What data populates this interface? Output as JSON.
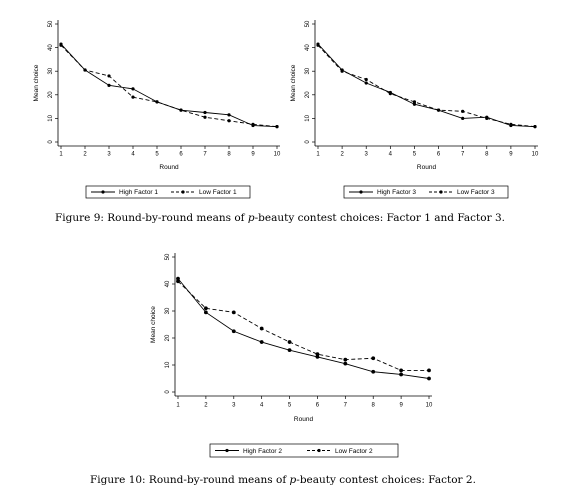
{
  "captions": {
    "fig9_prefix": "Figure 9: Round-by-round means of ",
    "fig9_italic": "p",
    "fig9_suffix": "-beauty contest choices: Factor 1 and Factor 3.",
    "fig10_prefix": "Figure 10: Round-by-round means of ",
    "fig10_italic": "p",
    "fig10_suffix": "-beauty contest choices: Factor 2."
  },
  "chart_data": [
    {
      "type": "line",
      "xlabel": "Round",
      "ylabel": "Mean choice",
      "x": [
        1,
        2,
        3,
        4,
        5,
        6,
        7,
        8,
        9,
        10
      ],
      "xlim": [
        1,
        10
      ],
      "ylim": [
        0,
        50
      ],
      "yticks": [
        0,
        10,
        20,
        30,
        40,
        50
      ],
      "legend_position": "bottom",
      "series": [
        {
          "name": "High Factor 1",
          "style": "solid",
          "values": [
            41.5,
            30.5,
            24,
            22.5,
            17,
            13.5,
            12.5,
            11.5,
            7,
            6.5
          ]
        },
        {
          "name": "Low Factor 1",
          "style": "dashed",
          "values": [
            41,
            30.5,
            28,
            19,
            17,
            13.5,
            10.5,
            9,
            7.5,
            6.5
          ]
        }
      ]
    },
    {
      "type": "line",
      "xlabel": "Round",
      "ylabel": "Mean choice",
      "x": [
        1,
        2,
        3,
        4,
        5,
        6,
        7,
        8,
        9,
        10
      ],
      "xlim": [
        1,
        10
      ],
      "ylim": [
        0,
        50
      ],
      "yticks": [
        0,
        10,
        20,
        30,
        40,
        50
      ],
      "legend_position": "bottom",
      "series": [
        {
          "name": "High Factor 3",
          "style": "solid",
          "values": [
            41.5,
            30.5,
            25,
            21,
            16,
            13.5,
            10,
            10.5,
            7,
            6.5
          ]
        },
        {
          "name": "Low Factor 3",
          "style": "dashed",
          "values": [
            41,
            30,
            26.5,
            20.5,
            17,
            13.5,
            13,
            10,
            7.5,
            6.5
          ]
        }
      ]
    },
    {
      "type": "line",
      "xlabel": "Round",
      "ylabel": "Mean choice",
      "x": [
        1,
        2,
        3,
        4,
        5,
        6,
        7,
        8,
        9,
        10
      ],
      "xlim": [
        1,
        10
      ],
      "ylim": [
        0,
        50
      ],
      "yticks": [
        0,
        10,
        20,
        30,
        40,
        50
      ],
      "legend_position": "bottom",
      "series": [
        {
          "name": "High Factor 2",
          "style": "solid",
          "values": [
            42,
            29.5,
            22.5,
            18.5,
            15.5,
            13,
            10.5,
            7.5,
            6.5,
            5
          ]
        },
        {
          "name": "Low Factor 2",
          "style": "dashed",
          "values": [
            41,
            31,
            29.5,
            23.5,
            18.5,
            14,
            12,
            12.5,
            8,
            8
          ]
        }
      ]
    }
  ]
}
